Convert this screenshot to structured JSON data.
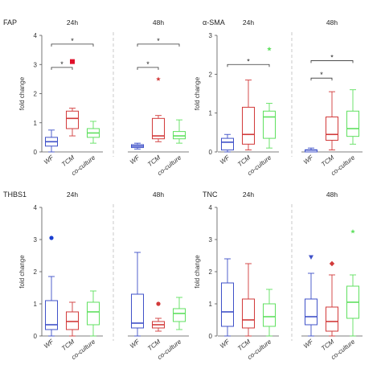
{
  "chart_data": [
    {
      "type": "box",
      "title": "FAP",
      "ylabel": "fold change",
      "ylim": [
        0,
        4
      ],
      "yticks": [
        "0",
        "1",
        "2",
        "3",
        "4"
      ],
      "timepoints": [
        "24h",
        "48h"
      ],
      "categories": [
        "WF",
        "TCM",
        "co-culture"
      ],
      "groups": [
        {
          "timepoint": "24h",
          "boxes": [
            {
              "category": "WF",
              "min": 0.0,
              "q1": 0.2,
              "median": 0.35,
              "q3": 0.5,
              "max": 0.75
            },
            {
              "category": "TCM",
              "min": 0.55,
              "q1": 0.8,
              "median": 1.15,
              "q3": 1.4,
              "max": 1.5
            },
            {
              "category": "co-culture",
              "min": 0.3,
              "q1": 0.5,
              "median": 0.65,
              "q3": 0.8,
              "max": 1.05
            }
          ],
          "outliers": [
            {
              "category": "TCM",
              "value": 3.1,
              "marker": "square"
            }
          ],
          "significance": [
            {
              "from": "WF",
              "to": "TCM",
              "y": 2.9,
              "label": "*"
            },
            {
              "from": "WF",
              "to": "co-culture",
              "y": 3.7,
              "label": "*"
            }
          ]
        },
        {
          "timepoint": "48h",
          "boxes": [
            {
              "category": "WF",
              "min": 0.1,
              "q1": 0.15,
              "median": 0.2,
              "q3": 0.25,
              "max": 0.3
            },
            {
              "category": "TCM",
              "min": 0.35,
              "q1": 0.45,
              "median": 0.55,
              "q3": 1.15,
              "max": 1.25
            },
            {
              "category": "co-culture",
              "min": 0.3,
              "q1": 0.45,
              "median": 0.55,
              "q3": 0.7,
              "max": 1.1
            }
          ],
          "outliers": [
            {
              "category": "TCM",
              "value": 2.5,
              "marker": "star"
            }
          ],
          "significance": [
            {
              "from": "WF",
              "to": "TCM",
              "y": 2.9,
              "label": "*"
            },
            {
              "from": "WF",
              "to": "co-culture",
              "y": 3.7,
              "label": "*"
            }
          ]
        }
      ]
    },
    {
      "type": "box",
      "title": "α-SMA",
      "ylabel": "fold change",
      "ylim": [
        0,
        3
      ],
      "yticks": [
        "0",
        "1",
        "2",
        "3"
      ],
      "timepoints": [
        "24h",
        "48h"
      ],
      "categories": [
        "WF",
        "TCM",
        "co-culture"
      ],
      "groups": [
        {
          "timepoint": "24h",
          "boxes": [
            {
              "category": "WF",
              "min": 0.0,
              "q1": 0.05,
              "median": 0.25,
              "q3": 0.35,
              "max": 0.45
            },
            {
              "category": "TCM",
              "min": 0.05,
              "q1": 0.2,
              "median": 0.45,
              "q3": 1.15,
              "max": 1.85
            },
            {
              "category": "co-culture",
              "min": 0.1,
              "q1": 0.35,
              "median": 0.9,
              "q3": 1.05,
              "max": 1.25
            }
          ],
          "outliers": [
            {
              "category": "co-culture",
              "value": 2.65,
              "marker": "star"
            }
          ],
          "significance": [
            {
              "from": "WF",
              "to": "co-culture",
              "y": 2.25,
              "label": "*"
            }
          ]
        },
        {
          "timepoint": "48h",
          "boxes": [
            {
              "category": "WF",
              "min": 0.0,
              "q1": 0.0,
              "median": 0.05,
              "q3": 0.05,
              "max": 0.1
            },
            {
              "category": "TCM",
              "min": 0.05,
              "q1": 0.3,
              "median": 0.45,
              "q3": 0.9,
              "max": 1.55
            },
            {
              "category": "co-culture",
              "min": 0.2,
              "q1": 0.4,
              "median": 0.6,
              "q3": 1.05,
              "max": 1.6
            }
          ],
          "outliers": [],
          "significance": [
            {
              "from": "WF",
              "to": "TCM",
              "y": 1.9,
              "label": "*"
            },
            {
              "from": "WF",
              "to": "co-culture",
              "y": 2.35,
              "label": "*"
            }
          ]
        }
      ]
    },
    {
      "type": "box",
      "title": "THBS1",
      "ylabel": "fold change",
      "ylim": [
        0,
        4
      ],
      "yticks": [
        "0",
        "1",
        "2",
        "3",
        "4"
      ],
      "timepoints": [
        "24h",
        "48h"
      ],
      "categories": [
        "WF",
        "TCM",
        "co-culture"
      ],
      "groups": [
        {
          "timepoint": "24h",
          "boxes": [
            {
              "category": "WF",
              "min": 0.0,
              "q1": 0.2,
              "median": 0.35,
              "q3": 1.1,
              "max": 1.85
            },
            {
              "category": "TCM",
              "min": 0.0,
              "q1": 0.2,
              "median": 0.45,
              "q3": 0.75,
              "max": 1.05
            },
            {
              "category": "co-culture",
              "min": 0.0,
              "q1": 0.35,
              "median": 0.75,
              "q3": 1.05,
              "max": 1.4
            }
          ],
          "outliers": [
            {
              "category": "WF",
              "value": 3.05,
              "marker": "circle"
            }
          ],
          "significance": []
        },
        {
          "timepoint": "48h",
          "boxes": [
            {
              "category": "WF",
              "min": 0.0,
              "q1": 0.25,
              "median": 0.4,
              "q3": 1.3,
              "max": 2.6
            },
            {
              "category": "TCM",
              "min": 0.15,
              "q1": 0.25,
              "median": 0.35,
              "q3": 0.45,
              "max": 0.55
            },
            {
              "category": "co-culture",
              "min": 0.2,
              "q1": 0.45,
              "median": 0.7,
              "q3": 0.85,
              "max": 1.2
            }
          ],
          "outliers": [
            {
              "category": "TCM",
              "value": 1.0,
              "marker": "circle"
            }
          ],
          "significance": []
        }
      ]
    },
    {
      "type": "box",
      "title": "TNC",
      "ylabel": "fold change",
      "ylim": [
        0,
        4
      ],
      "yticks": [
        "0",
        "1",
        "2",
        "3",
        "4"
      ],
      "timepoints": [
        "24h",
        "48h"
      ],
      "categories": [
        "WF",
        "TCM",
        "co-culture"
      ],
      "groups": [
        {
          "timepoint": "24h",
          "boxes": [
            {
              "category": "WF",
              "min": 0.0,
              "q1": 0.3,
              "median": 0.75,
              "q3": 1.65,
              "max": 2.4
            },
            {
              "category": "TCM",
              "min": 0.0,
              "q1": 0.25,
              "median": 0.5,
              "q3": 1.15,
              "max": 2.25
            },
            {
              "category": "co-culture",
              "min": 0.0,
              "q1": 0.3,
              "median": 0.6,
              "q3": 1.0,
              "max": 1.45
            }
          ],
          "outliers": [],
          "significance": []
        },
        {
          "timepoint": "48h",
          "boxes": [
            {
              "category": "WF",
              "min": 0.0,
              "q1": 0.35,
              "median": 0.6,
              "q3": 1.15,
              "max": 1.95
            },
            {
              "category": "TCM",
              "min": 0.0,
              "q1": 0.15,
              "median": 0.45,
              "q3": 0.9,
              "max": 1.9
            },
            {
              "category": "co-culture",
              "min": 0.0,
              "q1": 0.55,
              "median": 1.05,
              "q3": 1.55,
              "max": 1.9
            }
          ],
          "outliers": [
            {
              "category": "WF",
              "value": 2.45,
              "marker": "triangle-down"
            },
            {
              "category": "TCM",
              "value": 2.25,
              "marker": "diamond"
            },
            {
              "category": "co-culture",
              "value": 3.25,
              "marker": "star"
            }
          ],
          "significance": []
        }
      ]
    }
  ],
  "colors": {
    "WF": "#3f51c8",
    "TCM": "#d23a3a",
    "co-culture": "#5fe05f",
    "axis": "#555555",
    "separator": "#bbbbbb",
    "sig_line": "#333333",
    "outlier_TCM_FAP": "#e0102a",
    "outlier_WF_THBS1": "#1a3fd0"
  }
}
